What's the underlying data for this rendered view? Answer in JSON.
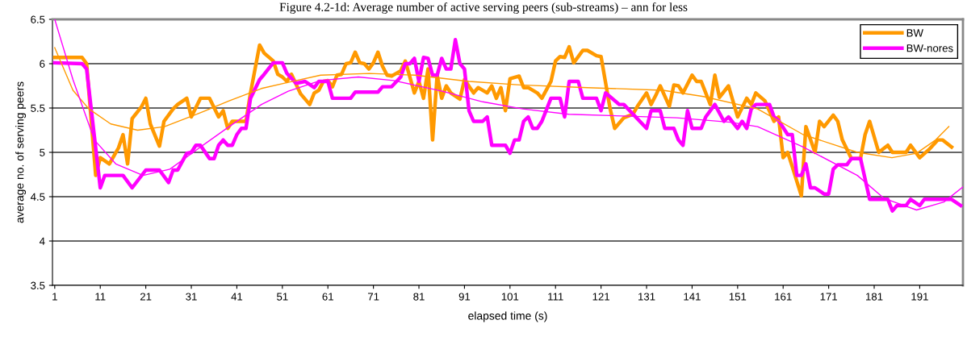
{
  "chart_data": {
    "type": "line",
    "title": "Figure 4.2-1d: Average number of active serving peers (sub-streams) – ann for less",
    "xlabel": "elapsed time (s)",
    "ylabel": "average no. of serving peers",
    "xlim": [
      0.5,
      200.5
    ],
    "xticks": [
      1,
      11,
      21,
      31,
      41,
      51,
      61,
      71,
      81,
      91,
      101,
      111,
      121,
      131,
      141,
      151,
      161,
      171,
      181,
      191
    ],
    "ylim": [
      3.5,
      6.5
    ],
    "yticks": [
      3.5,
      4,
      4.5,
      5,
      5.5,
      6,
      6.5
    ],
    "grid": "y",
    "legend": "top right",
    "marker": "none",
    "line_style": "solid",
    "series": [
      {
        "name": "BW",
        "color": "#ff9900",
        "x": [
          1,
          7,
          8,
          10,
          11,
          13,
          15,
          16,
          17,
          18,
          20,
          21,
          22,
          24,
          25,
          27,
          28,
          30,
          31,
          33,
          35,
          37,
          38,
          39,
          40,
          43,
          44,
          46,
          47,
          49,
          50,
          51,
          52,
          53,
          55,
          57,
          58,
          59,
          60,
          61,
          62,
          63,
          64,
          65,
          66,
          67,
          68,
          69,
          70,
          71,
          72,
          73,
          74,
          75,
          77,
          78,
          80,
          81,
          82,
          83,
          84,
          85,
          86,
          87,
          88,
          90,
          91,
          93,
          94,
          96,
          97,
          98,
          99,
          100,
          101,
          103,
          104,
          105,
          107,
          108,
          110,
          111,
          112,
          113,
          114,
          115,
          117,
          118,
          120,
          121,
          123,
          124,
          126,
          128,
          129,
          131,
          132,
          133,
          134,
          136,
          137,
          138,
          139,
          141,
          142,
          143,
          145,
          146,
          147,
          149,
          151,
          153,
          154,
          155,
          157,
          159,
          160,
          161,
          162,
          163,
          165,
          166,
          168,
          169,
          170,
          172,
          173,
          174,
          176,
          178,
          179,
          180,
          182,
          184,
          185,
          188,
          189,
          191,
          193,
          195,
          196,
          198
        ],
        "values": [
          6.07,
          6.07,
          6.0,
          4.74,
          4.94,
          4.87,
          5.05,
          5.2,
          4.87,
          5.38,
          5.51,
          5.61,
          5.32,
          5.07,
          5.35,
          5.49,
          5.54,
          5.61,
          5.4,
          5.61,
          5.61,
          5.4,
          5.47,
          5.27,
          5.35,
          5.35,
          5.67,
          6.21,
          6.12,
          6.03,
          5.88,
          5.85,
          5.8,
          5.88,
          5.66,
          5.54,
          5.67,
          5.7,
          5.8,
          5.81,
          5.74,
          5.87,
          5.88,
          6.0,
          6.01,
          6.13,
          6.01,
          6.0,
          5.94,
          6.01,
          6.13,
          5.97,
          5.87,
          5.86,
          5.92,
          6.03,
          5.67,
          5.8,
          5.61,
          5.94,
          5.14,
          5.87,
          5.61,
          5.75,
          5.67,
          5.6,
          5.82,
          5.67,
          5.73,
          5.67,
          5.75,
          5.61,
          5.73,
          5.47,
          5.83,
          5.86,
          5.73,
          5.73,
          5.67,
          5.61,
          5.8,
          6.03,
          6.08,
          6.07,
          6.19,
          6.01,
          6.15,
          6.15,
          6.09,
          6.08,
          5.49,
          5.27,
          5.39,
          5.43,
          5.52,
          5.67,
          5.54,
          5.64,
          5.75,
          5.52,
          5.76,
          5.75,
          5.67,
          5.87,
          5.8,
          5.8,
          5.54,
          5.87,
          5.62,
          5.75,
          5.4,
          5.61,
          5.54,
          5.67,
          5.58,
          5.35,
          5.4,
          4.94,
          5.0,
          4.84,
          4.51,
          5.29,
          5.0,
          5.35,
          5.29,
          5.42,
          5.35,
          5.14,
          4.93,
          4.93,
          5.2,
          5.35,
          5.0,
          5.08,
          5.0,
          5.0,
          5.08,
          4.94,
          5.03,
          5.14,
          5.14,
          5.06
        ]
      },
      {
        "name": "BW-nores",
        "color": "#ff00ff",
        "x": [
          1,
          7,
          8,
          11,
          12,
          16,
          18,
          21,
          24,
          26,
          27,
          28,
          30,
          31,
          32,
          33,
          35,
          36,
          37,
          38,
          39,
          40,
          41,
          42,
          43,
          44,
          46,
          47,
          49,
          51,
          52,
          54,
          56,
          58,
          59,
          61,
          62,
          66,
          67,
          72,
          73,
          75,
          77,
          78,
          79,
          80,
          81,
          82,
          83,
          84,
          85,
          86,
          87,
          88,
          89,
          90,
          91,
          92,
          93,
          95,
          96,
          97,
          100,
          101,
          102,
          103,
          104,
          105,
          106,
          107,
          108,
          110,
          112,
          113,
          114,
          116,
          117,
          120,
          121,
          122,
          125,
          126,
          131,
          132,
          134,
          135,
          137,
          138,
          139,
          140,
          141,
          143,
          144,
          146,
          148,
          149,
          151,
          152,
          153,
          154,
          155,
          158,
          159,
          160,
          162,
          163,
          164,
          165,
          166,
          167,
          168,
          170,
          171,
          172,
          173,
          175,
          176,
          178,
          180,
          184,
          185,
          186,
          188,
          189,
          191,
          192,
          198,
          200
        ],
        "values": [
          6.01,
          6.0,
          5.94,
          4.6,
          4.74,
          4.74,
          4.6,
          4.8,
          4.8,
          4.66,
          4.8,
          4.8,
          4.99,
          5.0,
          5.08,
          5.08,
          4.93,
          4.93,
          5.08,
          5.14,
          5.08,
          5.08,
          5.2,
          5.27,
          5.27,
          5.61,
          5.82,
          5.88,
          6.01,
          6.01,
          5.89,
          5.78,
          5.8,
          5.73,
          5.8,
          5.8,
          5.61,
          5.61,
          5.68,
          5.68,
          5.74,
          5.74,
          5.85,
          6.0,
          6.0,
          6.06,
          5.8,
          6.07,
          6.06,
          5.87,
          5.87,
          6.06,
          5.94,
          5.94,
          6.27,
          6.0,
          5.94,
          5.47,
          5.35,
          5.35,
          5.4,
          5.08,
          5.08,
          4.99,
          5.14,
          5.14,
          5.35,
          5.4,
          5.27,
          5.27,
          5.35,
          5.61,
          5.61,
          5.4,
          5.8,
          5.8,
          5.61,
          5.61,
          5.47,
          5.67,
          5.54,
          5.54,
          5.27,
          5.47,
          5.47,
          5.27,
          5.27,
          5.14,
          5.08,
          5.47,
          5.27,
          5.27,
          5.4,
          5.54,
          5.35,
          5.4,
          5.27,
          5.35,
          5.27,
          5.49,
          5.54,
          5.54,
          5.4,
          5.36,
          5.2,
          5.2,
          4.74,
          4.74,
          4.87,
          4.6,
          4.6,
          4.53,
          4.53,
          4.81,
          4.86,
          4.86,
          4.93,
          4.93,
          4.47,
          4.47,
          4.34,
          4.4,
          4.4,
          4.47,
          4.4,
          4.47,
          4.47,
          4.4
        ]
      },
      {
        "color": "#ff9900",
        "x": [
          1,
          5,
          8.5,
          13.3,
          19.2,
          25.1,
          32.2,
          39.3,
          46.4,
          52.3,
          59.4,
          70.1,
          80.2,
          92,
          103.2,
          118,
          134.6,
          143.5,
          155.4,
          165.4,
          177.3,
          184.9,
          190.3,
          194.5,
          197.4
        ],
        "values": [
          6.18,
          5.7,
          5.49,
          5.32,
          5.25,
          5.29,
          5.43,
          5.58,
          5.72,
          5.79,
          5.87,
          5.89,
          5.87,
          5.8,
          5.76,
          5.73,
          5.7,
          5.63,
          5.49,
          5.2,
          5.0,
          4.94,
          4.99,
          5.14,
          5.29
        ]
      },
      {
        "color": "#ff00ff",
        "x": [
          1,
          5,
          9.7,
          14.4,
          20.4,
          26.3,
          32.2,
          39.3,
          46.4,
          52.3,
          59.4,
          67.7,
          75.4,
          86.1,
          95,
          103.8,
          113.9,
          125.7,
          137.6,
          149.4,
          155.4,
          165.4,
          177.3,
          183.2,
          190.3,
          196.3,
          200.5
        ],
        "values": [
          6.5,
          5.82,
          5.14,
          4.87,
          4.74,
          4.81,
          5.03,
          5.29,
          5.54,
          5.69,
          5.81,
          5.85,
          5.81,
          5.69,
          5.57,
          5.49,
          5.43,
          5.41,
          5.39,
          5.34,
          5.29,
          5.06,
          4.74,
          4.48,
          4.35,
          4.44,
          4.61
        ]
      }
    ]
  }
}
